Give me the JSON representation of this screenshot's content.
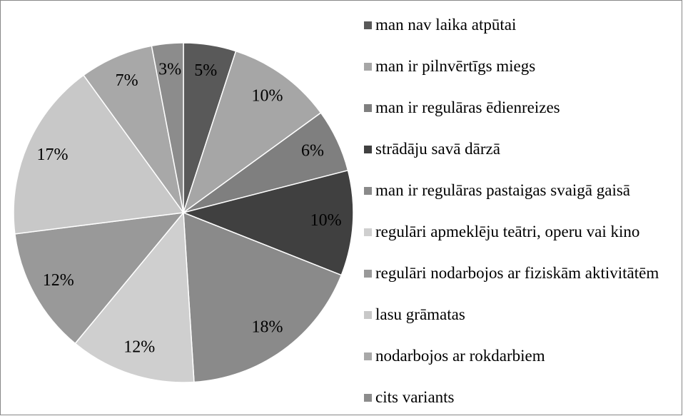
{
  "chart_data": {
    "type": "pie",
    "categories": [
      "man nav laika atpūtai",
      "man ir pilnvērtīgs miegs",
      "man ir regulāras ēdienreizes",
      "strādāju savā dārzā",
      "man ir regulāras pastaigas svaigā gaisā",
      "regulāri apmeklēju teātri, operu vai kino",
      "regulāri nodarbojos ar fiziskām aktivitātēm",
      "lasu grāmatas",
      "nodarbojos ar rokdarbiem",
      "cits variants"
    ],
    "values": [
      5,
      10,
      6,
      10,
      18,
      12,
      12,
      17,
      7,
      3
    ],
    "value_labels": [
      "5%",
      "10%",
      "6%",
      "10%",
      "18%",
      "12%",
      "12%",
      "17%",
      "7%",
      "3%"
    ],
    "colors": [
      "#595959",
      "#a6a6a6",
      "#7f7f7f",
      "#404040",
      "#8a8a8a",
      "#cfcfcf",
      "#999999",
      "#c8c8c8",
      "#a8a8a8",
      "#8c8c8c"
    ],
    "legend": "right"
  }
}
